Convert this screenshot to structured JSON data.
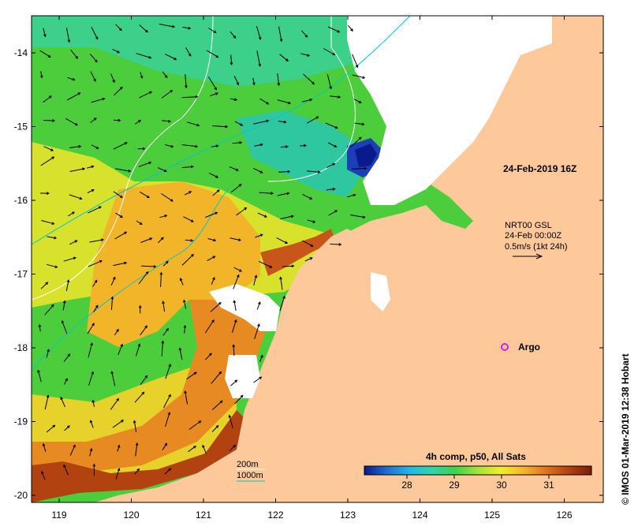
{
  "map": {
    "timestamp": "24-Feb-2019 16Z",
    "current": {
      "product": "NRT00 GSL",
      "time": "24-Feb 00:00Z",
      "scale": "0.5m/s (1kt 24h)"
    },
    "argo_label": "Argo",
    "isobaths": [
      {
        "label": "200m",
        "color": "#ffffff"
      },
      {
        "label": "1000m",
        "color": "#00c8c8"
      }
    ],
    "colorbar": {
      "title": "4h comp, p50, All Sats",
      "ticks": [
        "28",
        "29",
        "30",
        "31"
      ],
      "min": 27.1,
      "max": 31.9,
      "colors": [
        "#0a1a8a",
        "#1f6fd1",
        "#22b8e6",
        "#2ed6a8",
        "#3ad44a",
        "#a6e23a",
        "#f2ee2a",
        "#f7b52a",
        "#e0731e",
        "#b2420f",
        "#7a1e06"
      ]
    },
    "credit": "© IMOS 01-Mar-2019 12:38 Hobart",
    "axes": {
      "lon_ticks": [
        "119",
        "120",
        "121",
        "122",
        "123",
        "124",
        "125",
        "126"
      ],
      "lat_ticks": [
        "-14",
        "-15",
        "-16",
        "-17",
        "-18",
        "-19",
        "-20"
      ]
    },
    "colors": {
      "land": "#fdc99b",
      "cloud": "#ffffff",
      "arrow": "#000000"
    }
  }
}
